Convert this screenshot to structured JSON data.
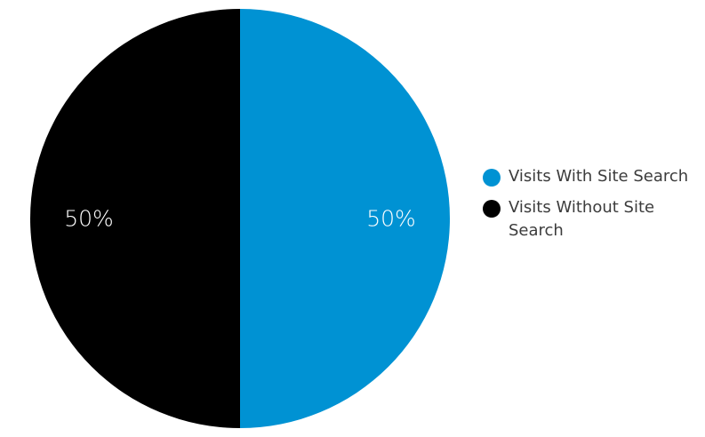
{
  "chart_data": {
    "type": "pie",
    "title": "",
    "slices": [
      {
        "label": "Visits With Site Search",
        "value": 50,
        "value_label": "50%",
        "color": "#0092d3"
      },
      {
        "label": "Visits Without Site Search",
        "value": 50,
        "value_label": "50%",
        "color": "#000000"
      }
    ],
    "legend_position": "right"
  }
}
